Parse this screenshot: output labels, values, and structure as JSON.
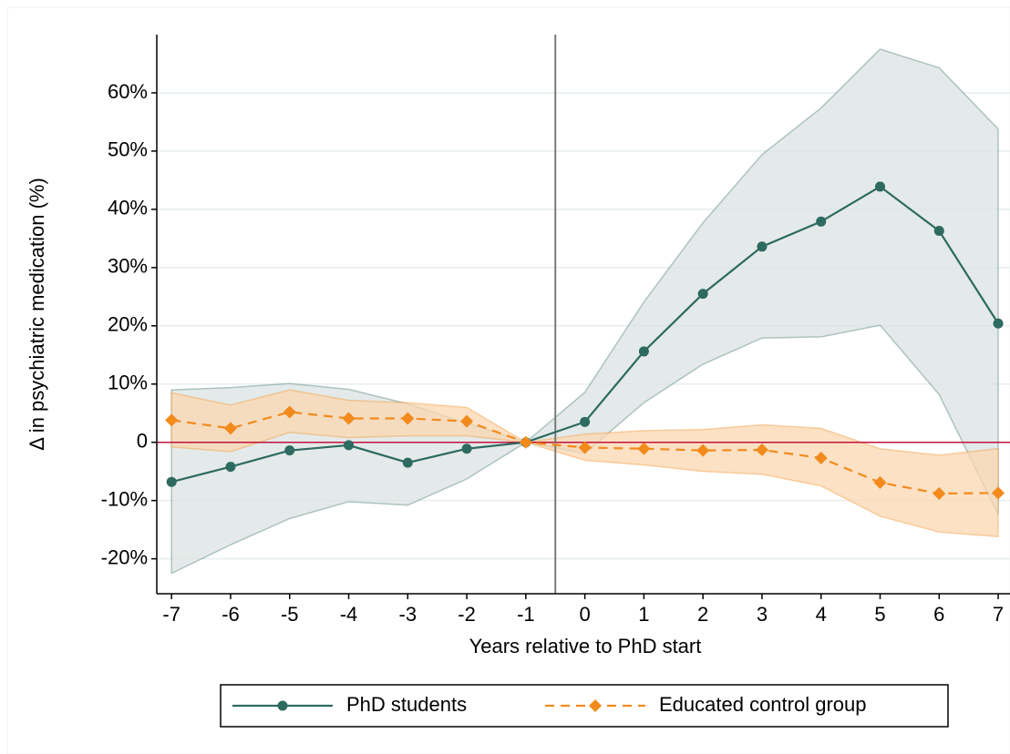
{
  "chart_data": {
    "type": "line",
    "y_label": "Δ in psychiatric medication (%)",
    "x_label": "Years relative to PhD start",
    "x": [
      -7,
      -6,
      -5,
      -4,
      -3,
      -2,
      -1,
      0,
      1,
      2,
      3,
      4,
      5,
      6,
      7
    ],
    "xlim": [
      -7.25,
      7.2
    ],
    "xticks": [
      -7,
      -6,
      -5,
      -4,
      -3,
      -2,
      -1,
      0,
      1,
      2,
      3,
      4,
      5,
      6,
      7
    ],
    "ylim": [
      -26,
      70
    ],
    "yticks": [
      {
        "value": -20,
        "label": "-20%"
      },
      {
        "value": -10,
        "label": "-10%"
      },
      0,
      {
        "value": 10,
        "label": "10%"
      },
      {
        "value": 20,
        "label": "20%"
      },
      {
        "value": 30,
        "label": "30%"
      },
      {
        "value": 40,
        "label": "40%"
      },
      {
        "value": 50,
        "label": "50%"
      },
      {
        "value": 60,
        "label": "60%"
      }
    ],
    "grid": true,
    "vline": -0.5,
    "hline": 0,
    "legend": "bottom",
    "series": [
      {
        "name": "PhD students",
        "color": "#2d6a60",
        "band_color": "#dbe3e1",
        "dash": false,
        "marker": "circle",
        "values": [
          -6.8,
          -4.2,
          -1.4,
          -0.5,
          -3.5,
          -1.1,
          0,
          3.5,
          15.6,
          25.5,
          33.6,
          37.9,
          43.9,
          36.3,
          20.4
        ],
        "ci_upper": [
          9.0,
          9.4,
          10.1,
          9.1,
          6.6,
          3.3,
          0,
          8.6,
          24.1,
          37.7,
          49.4,
          57.4,
          67.5,
          64.3,
          53.8
        ],
        "ci_lower": [
          -22.5,
          -17.6,
          -13.1,
          -10.2,
          -10.8,
          -6.3,
          0,
          -1.9,
          6.8,
          13.4,
          17.9,
          18.1,
          20.1,
          8.2,
          -12.4
        ]
      },
      {
        "name": "Educated control group",
        "color": "#f28a1c",
        "band_color": "#fbd7b0",
        "dash": true,
        "marker": "diamond",
        "values": [
          3.8,
          2.4,
          5.2,
          4.1,
          4.1,
          3.6,
          0,
          -0.9,
          -1.1,
          -1.4,
          -1.3,
          -2.7,
          -6.9,
          -8.8,
          -8.7
        ],
        "ci_upper": [
          8.5,
          6.4,
          9.0,
          7.2,
          6.8,
          6.0,
          0,
          1.4,
          2.0,
          2.2,
          3.0,
          2.4,
          -1.1,
          -2.2,
          -1.1
        ],
        "ci_lower": [
          -0.8,
          -1.6,
          1.7,
          0.8,
          1.1,
          1.1,
          0,
          -3.1,
          -3.9,
          -5.0,
          -5.5,
          -7.5,
          -12.7,
          -15.4,
          -16.2
        ]
      }
    ]
  }
}
